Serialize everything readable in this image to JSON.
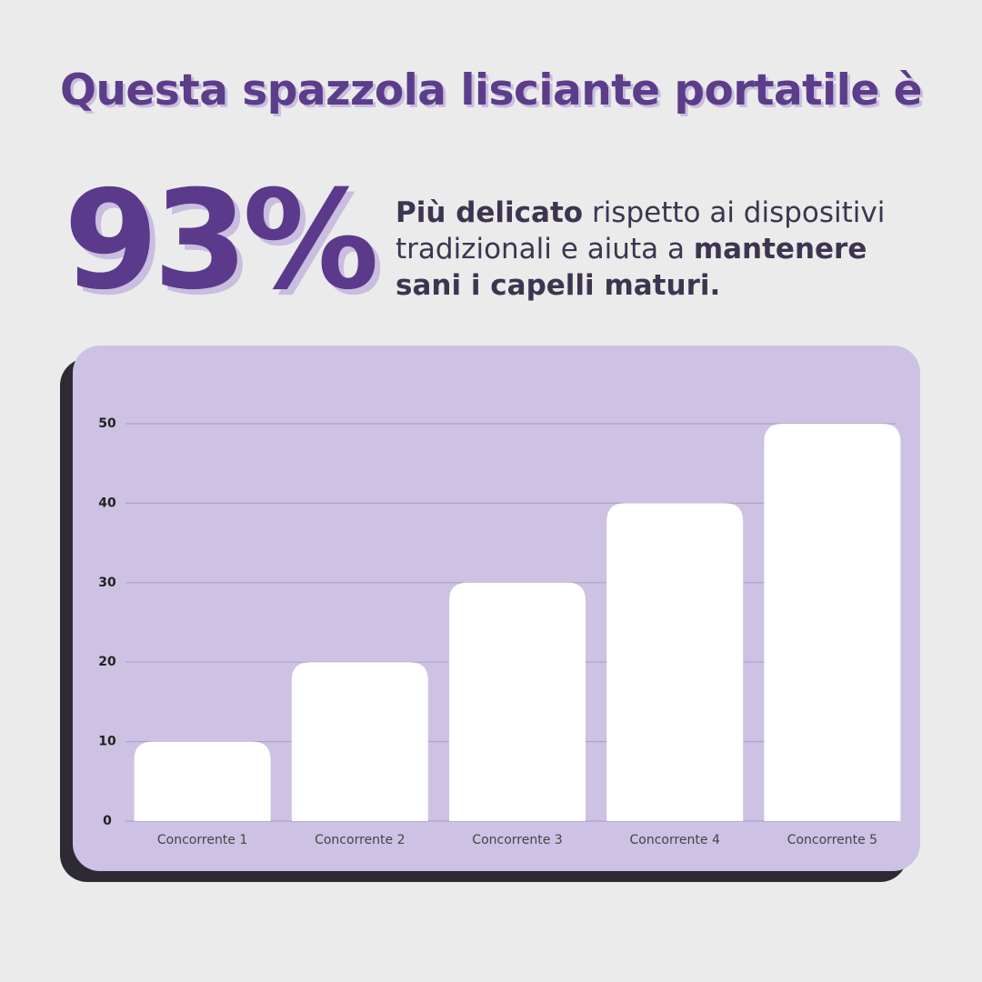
{
  "header": {
    "title": "Questa spazzola lisciante portatile è"
  },
  "stat": {
    "figure": "93%",
    "description": [
      {
        "text": "Più delicato",
        "bold": true
      },
      {
        "text": " rispetto ai dispositivi tradizionali e aiuta a ",
        "bold": false
      },
      {
        "text": "mantenere sani i capelli maturi.",
        "bold": true
      }
    ]
  },
  "chart_data": {
    "type": "bar",
    "categories": [
      "Concorrente 1",
      "Concorrente 2",
      "Concorrente 3",
      "Concorrente 4",
      "Concorrente 5"
    ],
    "values": [
      10,
      20,
      30,
      40,
      50
    ],
    "color": "#ffffff",
    "ylim": [
      0,
      50
    ],
    "yticks": [
      0,
      10,
      20,
      30,
      40,
      50
    ],
    "grid": true
  }
}
